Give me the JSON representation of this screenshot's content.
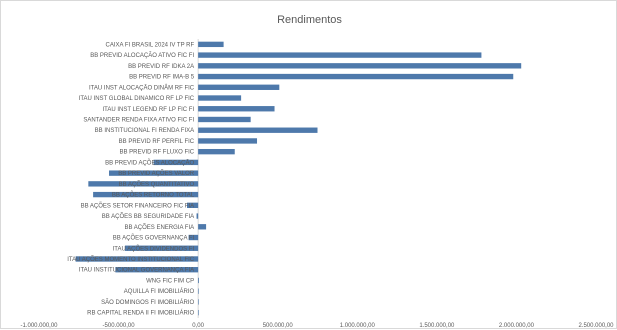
{
  "chart_data": {
    "type": "bar",
    "orientation": "horizontal",
    "title": "Rendimentos",
    "xlim": [
      -1000000,
      2500000
    ],
    "x_ticks": [
      -1000000,
      -500000,
      0,
      500000,
      1000000,
      1500000,
      2000000,
      2500000
    ],
    "x_tick_labels": [
      "-1.000.000,00",
      "-500.000,00",
      "0,00",
      "500.000,00",
      "1.000.000,00",
      "1.500.000,00",
      "2.000.000,00",
      "2.500.000,00"
    ],
    "bar_color": "#4e79ab",
    "grid": false,
    "legend": "none",
    "categories": [
      "CAIXA FI BRASIL 2024 IV TP RF",
      "BB PREVID ALOCAÇÃO ATIVO FIC FI",
      "BB PREVID RF IDKA 2A",
      "BB PREVID RF IMA-B 5",
      "ITAU INST ALOCAÇÃO DINÂM RF FIC",
      "ITAU INST GLOBAL DINAMICO RF LP FIC",
      "ITAU INST LEGEND RF LP FIC FI",
      "SANTANDER RENDA FIXA ATIVO FIC FI",
      "BB INSTITUCIONAL FI RENDA FIXA",
      "BB PREVID RF PERFIL FIC",
      "BB PREVID RF FLUXO FIC",
      "BB PREVID AÇÕES ALOCAÇÃO",
      "BB PREVID AÇÕES VALOR",
      "BB AÇÕES QUANTITATIVO",
      "BB AÇÕES RETORNO TOTAL",
      "BB AÇÕES SETOR FINANCEIRO FIC FIA",
      "BB AÇÕES BB SEGURIDADE FIA",
      "BB AÇÕES ENERGIA FIA",
      "BB AÇÕES GOVERNANÇA FI",
      "ITAU AÇÕES DIVIDENDOS FI",
      "ITAU AÇÕES MOMENTO INSTITUCIONAL FIC",
      "ITAU INSTITUCIONAL GOVERNANÇA FIA",
      "WNG FIC FIM CP",
      "AQUILLA FI IMOBILIÁRIO",
      "SÃO DOMINGOS FI IMOBILIÁRIO",
      "RB CAPITAL RENDA II FI IMOBILIÁRIO"
    ],
    "values": [
      160000,
      1780000,
      2030000,
      1980000,
      510000,
      270000,
      480000,
      330000,
      750000,
      370000,
      230000,
      -280000,
      -560000,
      -690000,
      -660000,
      -70000,
      -10000,
      50000,
      -60000,
      -460000,
      -770000,
      -520000,
      5000,
      0,
      0,
      0
    ]
  }
}
